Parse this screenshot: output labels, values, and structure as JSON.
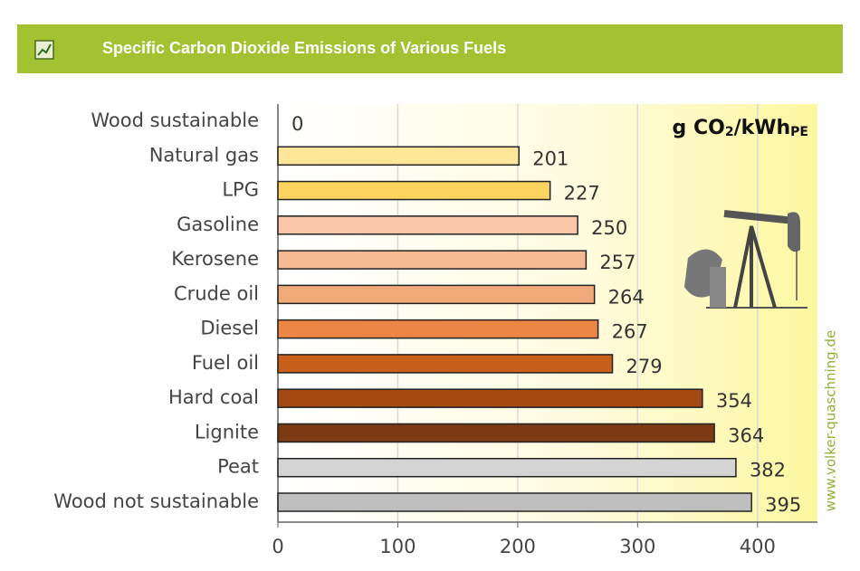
{
  "header": {
    "title": "Specific Carbon Dioxide Emissions of Various Fuels"
  },
  "chart_data": {
    "type": "hbar",
    "unit_label": [
      "g CO",
      "2",
      "/kWh",
      "PE"
    ],
    "source": "www.volker-quaschning.de",
    "categories": [
      "Wood sustainable",
      "Natural gas",
      "LPG",
      "Gasoline",
      "Kerosene",
      "Crude oil",
      "Diesel",
      "Fuel oil",
      "Hard coal",
      "Lignite",
      "Peat",
      "Wood not sustainable"
    ],
    "values": [
      0,
      201,
      227,
      250,
      257,
      264,
      267,
      279,
      354,
      364,
      382,
      395
    ],
    "colors": [
      "#fde59a",
      "#fde59a",
      "#fdd35f",
      "#f9c7a8",
      "#f5b993",
      "#f2a97a",
      "#ed8545",
      "#c8601c",
      "#a34a14",
      "#7b3a14",
      "#d4d4d4",
      "#bebebe"
    ],
    "xlim": [
      0,
      450
    ],
    "xticks": [
      0,
      100,
      200,
      300,
      400
    ],
    "grid": true
  }
}
